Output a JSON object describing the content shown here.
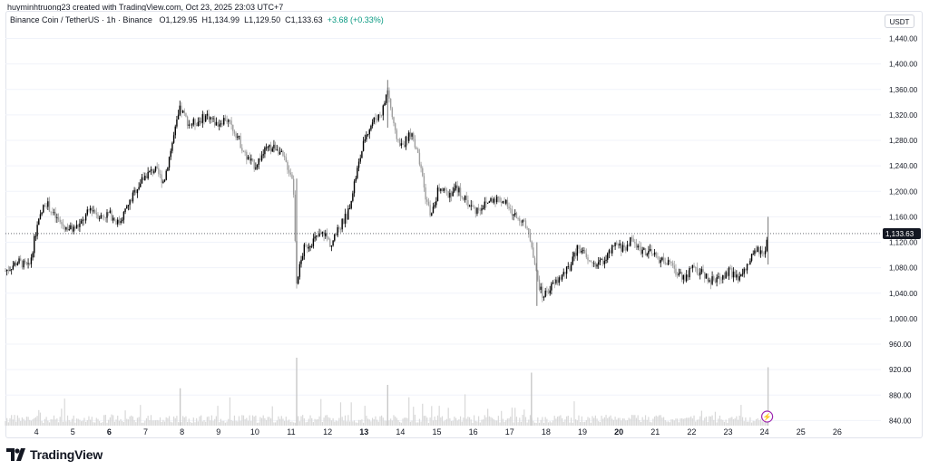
{
  "credit": "huyminhtruong23 created with TradingView.com, Oct 23, 2025 23:03 UTC+7",
  "legend": {
    "symbol": "Binance Coin / TetherUS · 1h · Binance",
    "open": "O1,129.95",
    "high": "H1,134.99",
    "low": "L1,129.50",
    "close": "C1,133.63",
    "change": "+3.68 (+0.33%)"
  },
  "currency_button": "USDT",
  "price_label": "1,133.63",
  "brand": "TradingView",
  "colors": {
    "up": "#000000",
    "down": "#9e9e9e",
    "volume": "#d8d8d8",
    "price_line": "#131722",
    "grid": "#f0f3fa"
  },
  "icons": {
    "alert": "lightning-icon",
    "logo": "tradingview-logo-icon"
  },
  "chart_data": {
    "type": "candlestick",
    "interval": "1h",
    "y_ticks": [
      "1,440.00",
      "1,400.00",
      "1,360.00",
      "1,320.00",
      "1,280.00",
      "1,240.00",
      "1,200.00",
      "1,160.00",
      "1,120.00",
      "1,080.00",
      "1,040.00",
      "1,000.00",
      "960.00",
      "920.00",
      "880.00",
      "840.00"
    ],
    "y_tick_values": [
      1440,
      1400,
      1360,
      1320,
      1280,
      1240,
      1200,
      1160,
      1120,
      1080,
      1040,
      1000,
      960,
      920,
      880,
      840
    ],
    "ylim": [
      832,
      1455
    ],
    "x_ticks": [
      {
        "label": "4",
        "day": 4,
        "bold": false
      },
      {
        "label": "5",
        "day": 5,
        "bold": false
      },
      {
        "label": "6",
        "day": 6,
        "bold": true
      },
      {
        "label": "7",
        "day": 7,
        "bold": false
      },
      {
        "label": "8",
        "day": 8,
        "bold": false
      },
      {
        "label": "9",
        "day": 9,
        "bold": false
      },
      {
        "label": "10",
        "day": 10,
        "bold": false
      },
      {
        "label": "11",
        "day": 11,
        "bold": false
      },
      {
        "label": "12",
        "day": 12,
        "bold": false
      },
      {
        "label": "13",
        "day": 13,
        "bold": true
      },
      {
        "label": "14",
        "day": 14,
        "bold": false
      },
      {
        "label": "15",
        "day": 15,
        "bold": false
      },
      {
        "label": "16",
        "day": 16,
        "bold": false
      },
      {
        "label": "17",
        "day": 17,
        "bold": false
      },
      {
        "label": "18",
        "day": 18,
        "bold": false
      },
      {
        "label": "19",
        "day": 19,
        "bold": false
      },
      {
        "label": "20",
        "day": 20,
        "bold": true
      },
      {
        "label": "21",
        "day": 21,
        "bold": false
      },
      {
        "label": "22",
        "day": 22,
        "bold": false
      },
      {
        "label": "23",
        "day": 23,
        "bold": false
      },
      {
        "label": "24",
        "day": 24,
        "bold": false
      },
      {
        "label": "25",
        "day": 25,
        "bold": false
      },
      {
        "label": "26",
        "day": 26,
        "bold": false
      }
    ],
    "xlim_days": [
      3.15,
      27.2
    ],
    "last_close": 1133.63,
    "price_path": [
      [
        3.15,
        1075
      ],
      [
        3.5,
        1090
      ],
      [
        3.8,
        1080
      ],
      [
        4.0,
        1140
      ],
      [
        4.25,
        1185
      ],
      [
        4.5,
        1160
      ],
      [
        4.75,
        1145
      ],
      [
        5.0,
        1140
      ],
      [
        5.25,
        1150
      ],
      [
        5.5,
        1175
      ],
      [
        5.75,
        1160
      ],
      [
        6.0,
        1165
      ],
      [
        6.25,
        1150
      ],
      [
        6.5,
        1175
      ],
      [
        6.75,
        1205
      ],
      [
        7.0,
        1225
      ],
      [
        7.25,
        1235
      ],
      [
        7.5,
        1215
      ],
      [
        7.75,
        1280
      ],
      [
        7.95,
        1330
      ],
      [
        8.2,
        1305
      ],
      [
        8.45,
        1310
      ],
      [
        8.7,
        1320
      ],
      [
        8.95,
        1305
      ],
      [
        9.2,
        1315
      ],
      [
        9.5,
        1290
      ],
      [
        9.75,
        1255
      ],
      [
        10.0,
        1240
      ],
      [
        10.3,
        1265
      ],
      [
        10.6,
        1270
      ],
      [
        10.85,
        1245
      ],
      [
        11.05,
        1220
      ],
      [
        11.15,
        1060
      ],
      [
        11.35,
        1110
      ],
      [
        11.65,
        1125
      ],
      [
        11.9,
        1135
      ],
      [
        12.1,
        1115
      ],
      [
        12.3,
        1140
      ],
      [
        12.55,
        1165
      ],
      [
        12.8,
        1230
      ],
      [
        13.05,
        1290
      ],
      [
        13.25,
        1310
      ],
      [
        13.5,
        1325
      ],
      [
        13.65,
        1360
      ],
      [
        13.85,
        1290
      ],
      [
        14.05,
        1270
      ],
      [
        14.3,
        1295
      ],
      [
        14.5,
        1250
      ],
      [
        14.7,
        1190
      ],
      [
        14.85,
        1160
      ],
      [
        15.05,
        1205
      ],
      [
        15.3,
        1195
      ],
      [
        15.55,
        1205
      ],
      [
        15.8,
        1185
      ],
      [
        16.05,
        1170
      ],
      [
        16.35,
        1180
      ],
      [
        16.55,
        1190
      ],
      [
        16.85,
        1185
      ],
      [
        17.05,
        1165
      ],
      [
        17.35,
        1155
      ],
      [
        17.6,
        1120
      ],
      [
        17.75,
        1065
      ],
      [
        17.9,
        1035
      ],
      [
        18.15,
        1050
      ],
      [
        18.4,
        1065
      ],
      [
        18.65,
        1080
      ],
      [
        18.9,
        1115
      ],
      [
        19.15,
        1090
      ],
      [
        19.4,
        1085
      ],
      [
        19.65,
        1095
      ],
      [
        19.9,
        1115
      ],
      [
        20.15,
        1110
      ],
      [
        20.35,
        1125
      ],
      [
        20.55,
        1110
      ],
      [
        20.8,
        1105
      ],
      [
        21.05,
        1095
      ],
      [
        21.3,
        1090
      ],
      [
        21.55,
        1075
      ],
      [
        21.8,
        1065
      ],
      [
        22.05,
        1080
      ],
      [
        22.3,
        1070
      ],
      [
        22.55,
        1060
      ],
      [
        22.8,
        1065
      ],
      [
        23.05,
        1075
      ],
      [
        23.3,
        1060
      ],
      [
        23.55,
        1085
      ],
      [
        23.8,
        1110
      ],
      [
        24.0,
        1095
      ],
      [
        24.1,
        1133.63
      ]
    ],
    "volume_spikes": [
      {
        "day": 11.15,
        "rel": 1.0
      },
      {
        "day": 17.6,
        "rel": 0.78
      },
      {
        "day": 24.1,
        "rel": 0.86
      },
      {
        "day": 13.65,
        "rel": 0.6
      },
      {
        "day": 7.95,
        "rel": 0.55
      }
    ]
  }
}
